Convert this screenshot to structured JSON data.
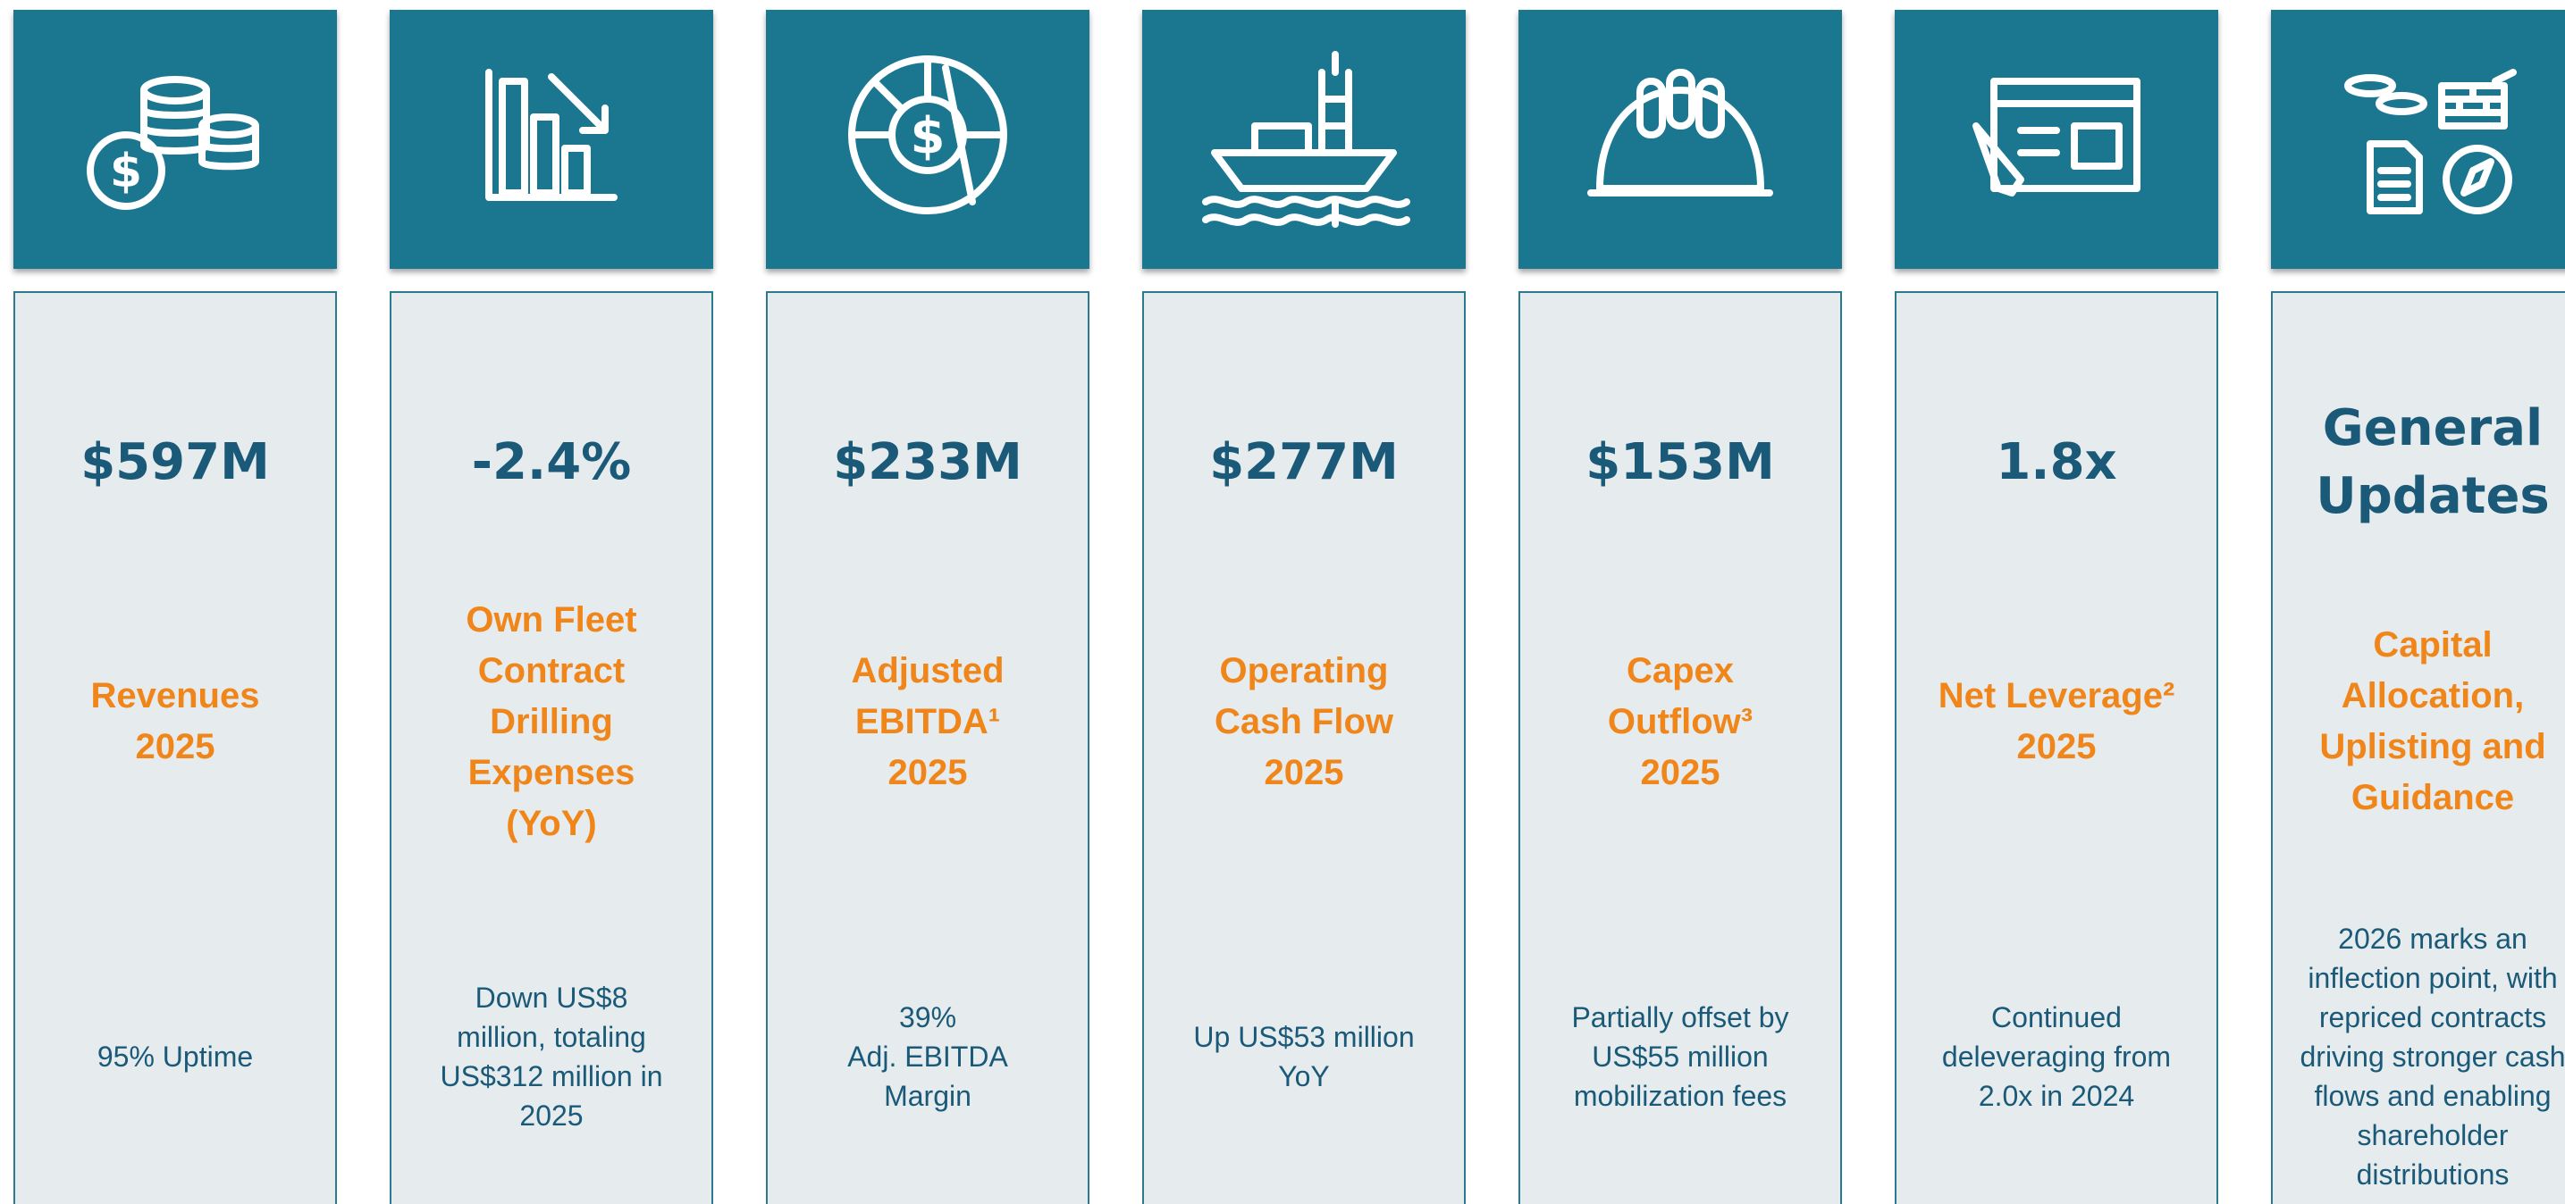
{
  "columns": [
    {
      "metric": "$597M",
      "label": "Revenues\n2025",
      "description": "95% Uptime"
    },
    {
      "metric": "-2.4%",
      "label": "Own Fleet\nContract\nDrilling\nExpenses\n(YoY)",
      "description": "Down US$8\nmillion, totaling\nUS$312 million in\n2025"
    },
    {
      "metric": "$233M",
      "label": "Adjusted\nEBITDA¹\n2025",
      "description": "39%\nAdj. EBITDA\nMargin"
    },
    {
      "metric": "$277M",
      "label": "Operating\nCash Flow\n2025",
      "description": "Up US$53 million\nYoY"
    },
    {
      "metric": "$153M",
      "label": "Capex\nOutflow³\n2025",
      "description": "Partially offset by\nUS$55 million\nmobilization fees"
    },
    {
      "metric": "1.8x",
      "label": "Net Leverage²\n2025",
      "description": "Continued\ndeleveraging from\n2.0x in 2024"
    },
    {
      "metric": "General\nUpdates",
      "label": "Capital\nAllocation,\nUplisting and\nGuidance",
      "description": "2026 marks an\ninflection point, with\nrepriced contracts\ndriving stronger cash\nflows and enabling\nshareholder\ndistributions"
    }
  ]
}
